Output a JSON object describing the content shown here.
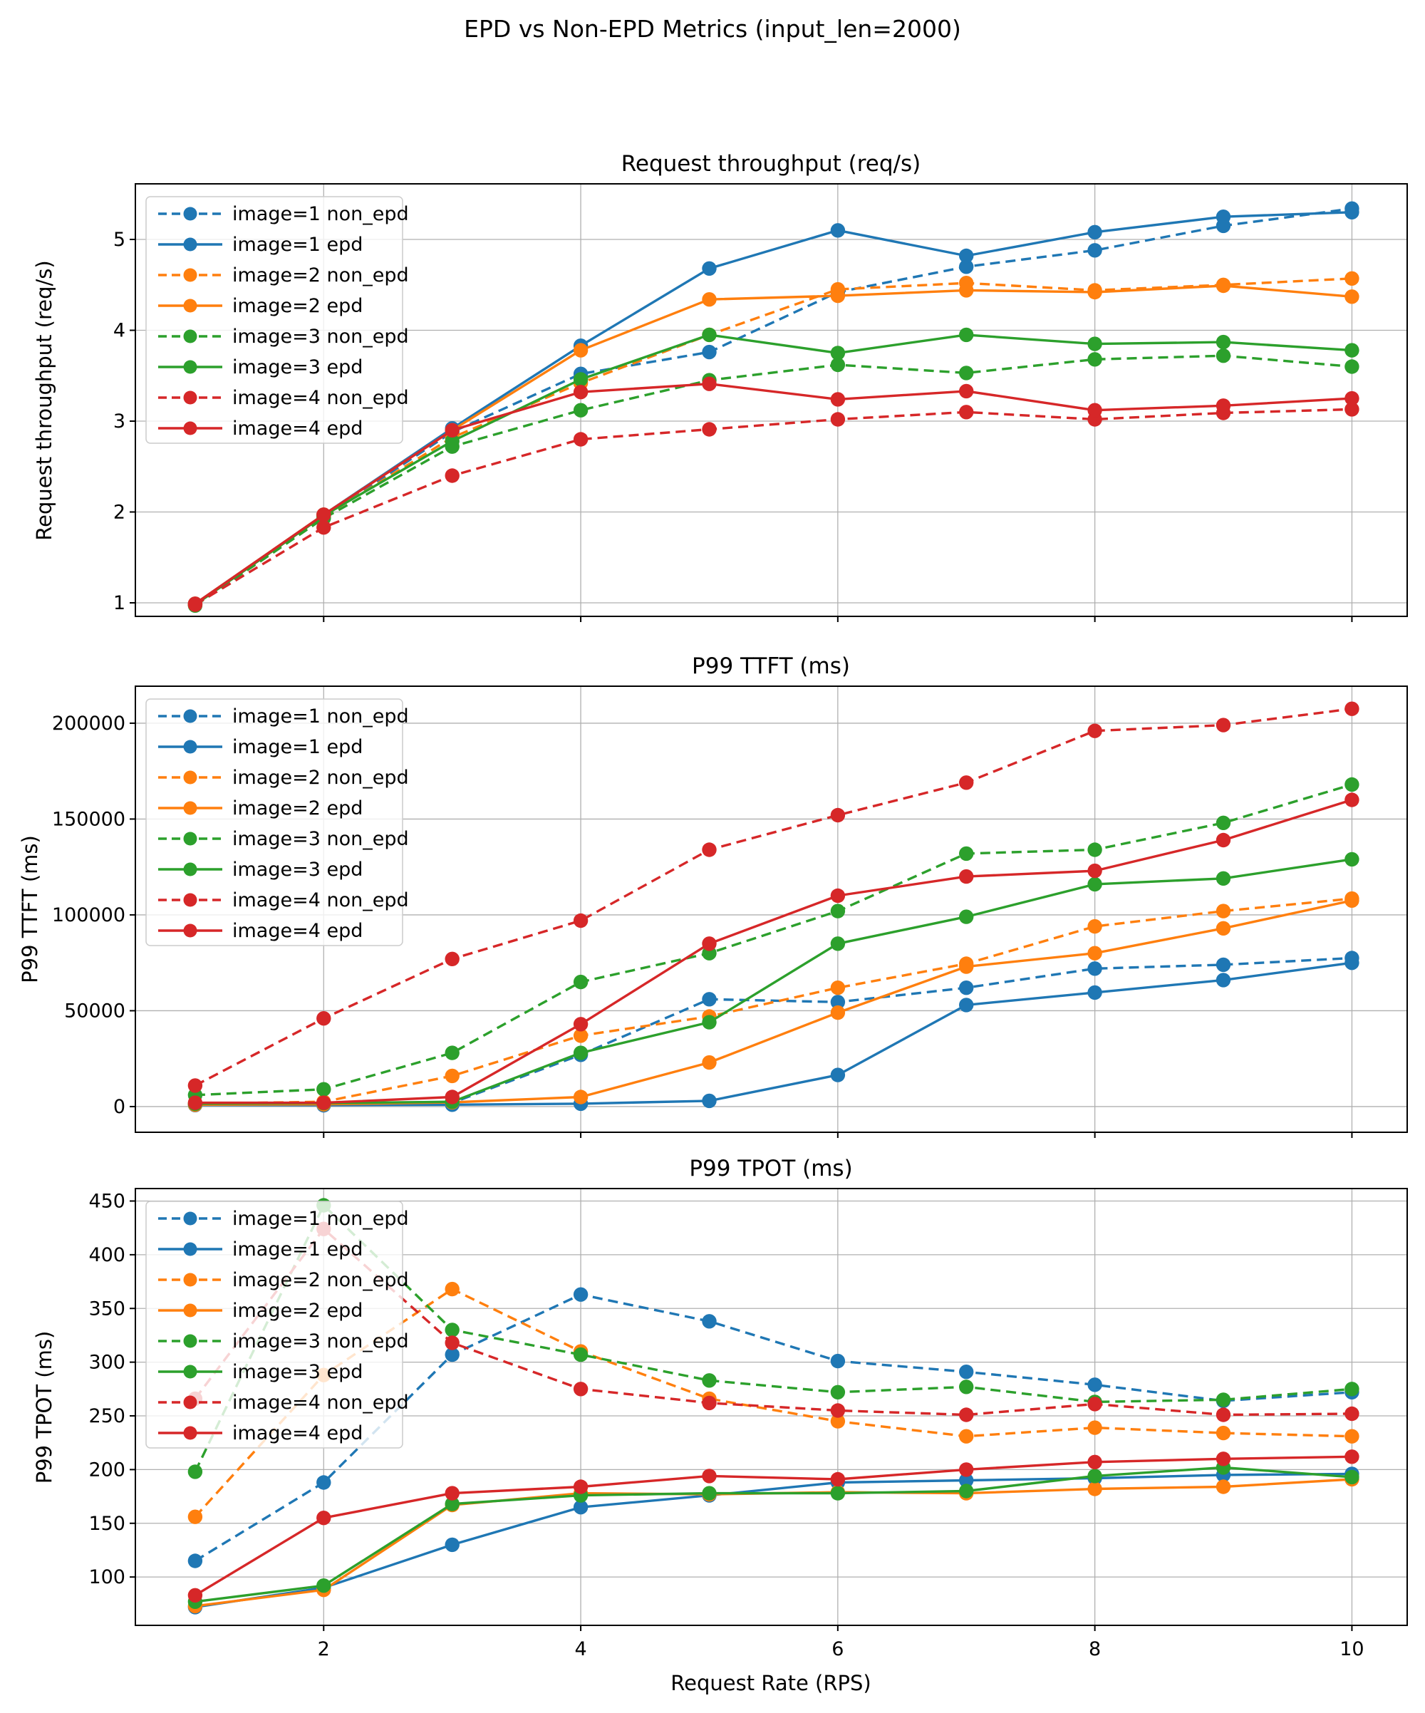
{
  "figure": {
    "suptitle": "EPD vs Non-EPD Metrics (input_len=2000)"
  },
  "x_axis": {
    "label": "Request Rate (RPS)",
    "ticks": [
      2,
      4,
      6,
      8,
      10
    ],
    "xlim": [
      0.535,
      10.43
    ]
  },
  "colors": {
    "blue": "#1f77b4",
    "orange": "#ff7f0e",
    "green": "#2ca02c",
    "red": "#d62728",
    "grid": "#b0b0b0",
    "spine": "#000000",
    "legend_bg": "rgba(255,255,255,0.8)",
    "legend_border": "#cccccc"
  },
  "legend_labels": [
    "image=1 non_epd",
    "image=1 epd",
    "image=2 non_epd",
    "image=2 epd",
    "image=3 non_epd",
    "image=3 epd",
    "image=4 non_epd",
    "image=4 epd"
  ],
  "chart_data": [
    {
      "type": "line",
      "title": "Request throughput (req/s)",
      "ylabel": "Request throughput (req/s)",
      "x": [
        1,
        2,
        3,
        4,
        5,
        6,
        7,
        8,
        9,
        10
      ],
      "yticks": [
        1,
        2,
        3,
        4,
        5
      ],
      "ylim": [
        0.851,
        5.612
      ],
      "legend_position": "upper-left",
      "grid": true,
      "series": [
        {
          "label": "image=1 non_epd",
          "color": "blue",
          "style": "dashed",
          "values": [
            0.98,
            1.95,
            2.88,
            3.52,
            3.76,
            4.42,
            4.7,
            4.88,
            5.15,
            5.34
          ]
        },
        {
          "label": "image=1 epd",
          "color": "blue",
          "style": "solid",
          "values": [
            0.99,
            1.97,
            2.92,
            3.83,
            4.68,
            5.1,
            4.82,
            5.08,
            5.25,
            5.3
          ]
        },
        {
          "label": "image=2 non_epd",
          "color": "orange",
          "style": "dashed",
          "values": [
            0.98,
            1.95,
            2.82,
            3.42,
            3.95,
            4.45,
            4.52,
            4.44,
            4.5,
            4.57
          ]
        },
        {
          "label": "image=2 epd",
          "color": "orange",
          "style": "solid",
          "values": [
            0.99,
            1.97,
            2.9,
            3.78,
            4.34,
            4.38,
            4.44,
            4.42,
            4.49,
            4.37
          ]
        },
        {
          "label": "image=3 non_epd",
          "color": "green",
          "style": "dashed",
          "values": [
            0.97,
            1.93,
            2.72,
            3.12,
            3.45,
            3.62,
            3.53,
            3.68,
            3.72,
            3.6
          ]
        },
        {
          "label": "image=3 epd",
          "color": "green",
          "style": "solid",
          "values": [
            0.98,
            1.96,
            2.78,
            3.46,
            3.95,
            3.75,
            3.95,
            3.85,
            3.87,
            3.78
          ]
        },
        {
          "label": "image=4 non_epd",
          "color": "red",
          "style": "dashed",
          "values": [
            0.98,
            1.83,
            2.4,
            2.8,
            2.91,
            3.02,
            3.1,
            3.02,
            3.09,
            3.13
          ]
        },
        {
          "label": "image=4 epd",
          "color": "red",
          "style": "solid",
          "values": [
            0.99,
            1.97,
            2.9,
            3.32,
            3.41,
            3.24,
            3.33,
            3.12,
            3.17,
            3.25
          ]
        }
      ]
    },
    {
      "type": "line",
      "title": "P99 TTFT (ms)",
      "ylabel": "P99 TTFT (ms)",
      "x": [
        1,
        2,
        3,
        4,
        5,
        6,
        7,
        8,
        9,
        10
      ],
      "yticks": [
        0,
        50000,
        100000,
        150000,
        200000
      ],
      "ylim": [
        -13400,
        219300
      ],
      "legend_position": "upper-left",
      "grid": true,
      "series": [
        {
          "label": "image=1 non_epd",
          "color": "blue",
          "style": "dashed",
          "values": [
            1200,
            1500,
            2000,
            27000,
            56000,
            54500,
            62000,
            72000,
            74000,
            77500
          ]
        },
        {
          "label": "image=1 epd",
          "color": "blue",
          "style": "solid",
          "values": [
            800,
            700,
            1000,
            1500,
            3000,
            16500,
            53000,
            59500,
            66000,
            75000
          ]
        },
        {
          "label": "image=2 non_epd",
          "color": "orange",
          "style": "dashed",
          "values": [
            1500,
            2500,
            16000,
            37000,
            47000,
            62000,
            74500,
            94000,
            102000,
            108500
          ]
        },
        {
          "label": "image=2 epd",
          "color": "orange",
          "style": "solid",
          "values": [
            1000,
            1200,
            2200,
            5000,
            23000,
            49000,
            73000,
            80000,
            93000,
            107500
          ]
        },
        {
          "label": "image=3 non_epd",
          "color": "green",
          "style": "dashed",
          "values": [
            6000,
            9000,
            28000,
            65000,
            80000,
            102000,
            132000,
            134000,
            148000,
            168000
          ]
        },
        {
          "label": "image=3 epd",
          "color": "green",
          "style": "solid",
          "values": [
            1500,
            1800,
            2500,
            28000,
            44000,
            85000,
            99000,
            116000,
            119000,
            129000
          ]
        },
        {
          "label": "image=4 non_epd",
          "color": "red",
          "style": "dashed",
          "values": [
            11000,
            46000,
            77000,
            97000,
            134000,
            152000,
            169000,
            196000,
            199000,
            207500
          ]
        },
        {
          "label": "image=4 epd",
          "color": "red",
          "style": "solid",
          "values": [
            2000,
            2000,
            5000,
            43000,
            85000,
            110000,
            120000,
            123000,
            139000,
            160000
          ]
        }
      ]
    },
    {
      "type": "line",
      "title": "P99 TPOT (ms)",
      "ylabel": "P99 TPOT (ms)",
      "x": [
        1,
        2,
        3,
        4,
        5,
        6,
        7,
        8,
        9,
        10
      ],
      "yticks": [
        100,
        150,
        200,
        250,
        300,
        350,
        400,
        450
      ],
      "ylim": [
        55,
        461.6
      ],
      "legend_position": "upper-left",
      "grid": true,
      "series": [
        {
          "label": "image=1 non_epd",
          "color": "blue",
          "style": "dashed",
          "values": [
            115,
            188,
            307,
            363,
            338,
            301,
            291,
            279,
            264,
            272
          ]
        },
        {
          "label": "image=1 epd",
          "color": "blue",
          "style": "solid",
          "values": [
            72,
            90,
            130,
            165,
            176,
            188,
            190,
            192,
            195,
            196
          ]
        },
        {
          "label": "image=2 non_epd",
          "color": "orange",
          "style": "dashed",
          "values": [
            156,
            288,
            368,
            310,
            266,
            245,
            231,
            239,
            234,
            231
          ]
        },
        {
          "label": "image=2 epd",
          "color": "orange",
          "style": "solid",
          "values": [
            73,
            88,
            167,
            178,
            177,
            179,
            178,
            182,
            184,
            191
          ]
        },
        {
          "label": "image=3 non_epd",
          "color": "green",
          "style": "dashed",
          "values": [
            198,
            446,
            330,
            307,
            283,
            272,
            277,
            263,
            265,
            275
          ]
        },
        {
          "label": "image=3 epd",
          "color": "green",
          "style": "solid",
          "values": [
            77,
            92,
            168,
            176,
            178,
            178,
            180,
            194,
            202,
            193
          ]
        },
        {
          "label": "image=4 non_epd",
          "color": "red",
          "style": "dashed",
          "values": [
            266,
            424,
            318,
            275,
            262,
            255,
            251,
            261,
            251,
            252
          ]
        },
        {
          "label": "image=4 epd",
          "color": "red",
          "style": "solid",
          "values": [
            83,
            155,
            178,
            184,
            194,
            191,
            200,
            207,
            210,
            212
          ]
        }
      ]
    }
  ]
}
